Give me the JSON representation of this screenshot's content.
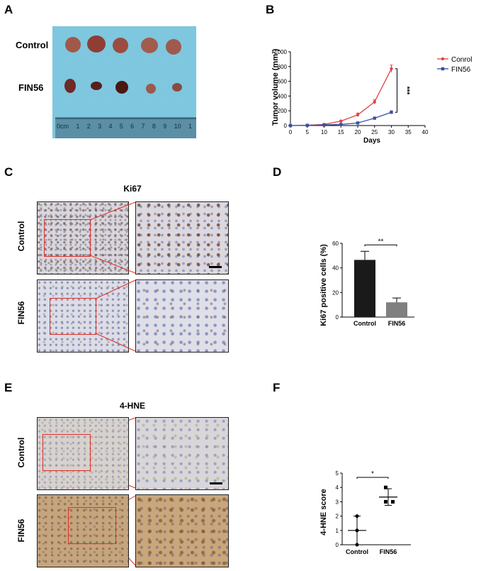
{
  "panels": {
    "A": {
      "letter": "A",
      "rows": [
        "Control",
        "FIN56"
      ],
      "ruler_ticks": [
        "0cm",
        "1",
        "2",
        "3",
        "4",
        "5",
        "6",
        "7",
        "8",
        "9",
        "10",
        "1"
      ]
    },
    "B": {
      "letter": "B"
    },
    "C": {
      "letter": "C",
      "title": "Ki67",
      "rows": [
        "Control",
        "FIN56"
      ]
    },
    "D": {
      "letter": "D"
    },
    "E": {
      "letter": "E",
      "title": "4-HNE",
      "rows": [
        "Control",
        "FIN56"
      ]
    },
    "F": {
      "letter": "F"
    }
  },
  "chart_data": [
    {
      "id": "B",
      "type": "line",
      "xlabel": "Days",
      "ylabel": "Tumor volume (mm³)",
      "xlim": [
        0,
        40
      ],
      "ylim": [
        0,
        1000
      ],
      "xticks": [
        "0",
        "5",
        "10",
        "15",
        "20",
        "25",
        "30",
        "35",
        "40"
      ],
      "yticks": [
        "0",
        "200",
        "400",
        "600",
        "800",
        "1000"
      ],
      "legend_position": "right",
      "series": [
        {
          "name": "Conrol",
          "color": "#e04343",
          "x": [
            0,
            5,
            10,
            15,
            20,
            25,
            30
          ],
          "y": [
            0,
            5,
            15,
            60,
            145,
            320,
            770
          ],
          "err": [
            0,
            3,
            5,
            12,
            25,
            30,
            50
          ]
        },
        {
          "name": "FIN56",
          "color": "#3a4fa3",
          "x": [
            0,
            5,
            10,
            15,
            20,
            25,
            30
          ],
          "y": [
            0,
            3,
            8,
            15,
            35,
            100,
            180
          ],
          "err": [
            0,
            2,
            3,
            5,
            8,
            15,
            20
          ]
        }
      ],
      "significance": "***"
    },
    {
      "id": "D",
      "type": "bar",
      "ylabel": "Ki67 positive cells (%)",
      "categories": [
        "Control",
        "FIN56"
      ],
      "values": [
        46.5,
        12
      ],
      "err": [
        7,
        3.5
      ],
      "colors": [
        "#1a1a1a",
        "#808080"
      ],
      "ylim": [
        0,
        60
      ],
      "yticks": [
        "0",
        "20",
        "40",
        "60"
      ],
      "significance": "**"
    },
    {
      "id": "F",
      "type": "scatter",
      "ylabel": "4-HNE score",
      "categories": [
        "Control",
        "FIN56"
      ],
      "points": [
        [
          2,
          1,
          0
        ],
        [
          4,
          3,
          3
        ]
      ],
      "mean": [
        1,
        3.33
      ],
      "sd": [
        1,
        0.58
      ],
      "ylim": [
        0,
        5
      ],
      "yticks": [
        "0",
        "1",
        "2",
        "3",
        "4",
        "5"
      ],
      "significance": "*"
    }
  ]
}
